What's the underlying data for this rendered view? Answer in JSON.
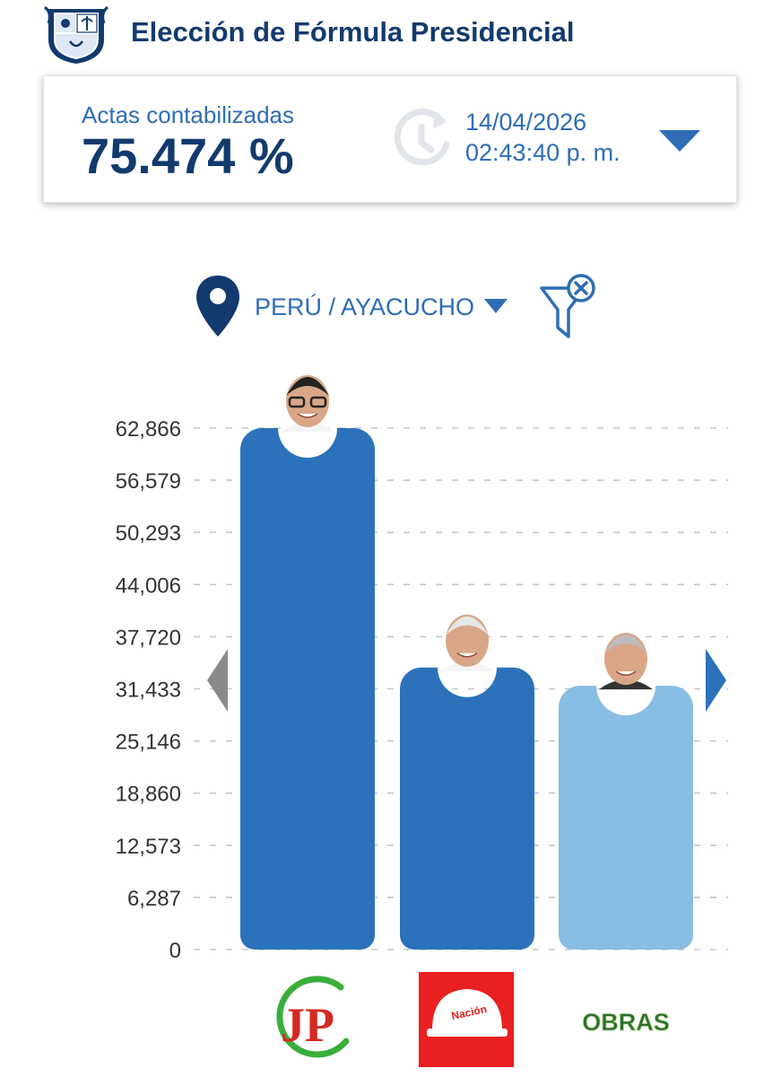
{
  "header": {
    "title": "Elección de Fórmula Presidencial"
  },
  "summary": {
    "label": "Actas contabilizadas",
    "value": "75.474 %",
    "date": "14/04/2026",
    "time": "02:43:40 p. m."
  },
  "location": {
    "text": "PERÚ / AYACUCHO"
  },
  "colors": {
    "navy": "#123a6e",
    "blue": "#2e6db5",
    "bar_dark": "#2b72bb",
    "bar_light": "#88bde4"
  },
  "chart_data": {
    "type": "bar",
    "title": "",
    "xlabel": "",
    "ylabel": "",
    "y_ticks": [
      "0",
      "6,287",
      "12,573",
      "18,860",
      "25,146",
      "31,433",
      "37,720",
      "44,006",
      "50,293",
      "56,579",
      "62,866"
    ],
    "ylim": [
      0,
      62866
    ],
    "grid": true,
    "categories": [
      "JP",
      "Nación",
      "OBRAS"
    ],
    "values": [
      62866,
      34000,
      31800
    ],
    "bar_colors": [
      "#2b72bb",
      "#2b72bb",
      "#88bde4"
    ]
  },
  "parties": [
    {
      "logo_text": "JP"
    },
    {
      "logo_text": "Nación"
    },
    {
      "logo_text": "OBRAS"
    }
  ]
}
